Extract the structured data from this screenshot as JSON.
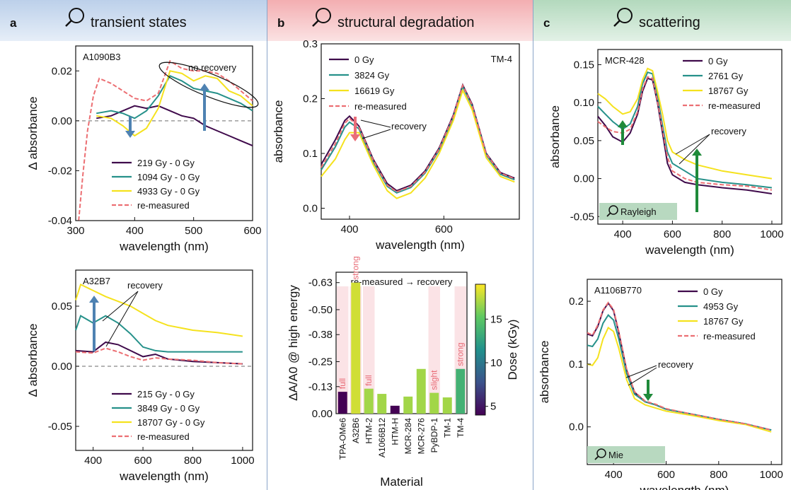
{
  "panels": [
    {
      "letter": "a",
      "title": "transient states",
      "color": "#c6d6ec"
    },
    {
      "letter": "b",
      "title": "structural degradation",
      "color": "#f6c1c3"
    },
    {
      "letter": "c",
      "title": "scattering",
      "color": "#c5e2cd"
    }
  ],
  "icons": {
    "title": "magnifier-icon"
  },
  "colors": {
    "c1": "#3f0a4b",
    "c2": "#26918a",
    "c3": "#f5e21e",
    "c4": "#ec6f73",
    "arrow_blue": "#4e82b2",
    "arrow_pink": "#ea6d78",
    "arrow_green": "#1f8a3a"
  },
  "chart_data": [
    {
      "id": "a_top",
      "type": "line",
      "annotation": "A1090B3",
      "note": "no recovery",
      "ylabel": "Δ absorbance",
      "xlabel": "wavelength (nm)",
      "xlim": [
        300,
        600
      ],
      "ylim": [
        -0.04,
        0.03
      ],
      "xticks": [
        "300",
        "400",
        "500",
        "600"
      ],
      "yticks": [
        "0.02",
        "0.00",
        "-0.02",
        "-0.04"
      ],
      "legend": "lower-middle",
      "series": [
        {
          "name": "219 Gy - 0 Gy",
          "x": [
            335,
            360,
            380,
            400,
            420,
            440,
            460,
            480,
            500,
            520,
            540,
            560,
            580,
            600
          ],
          "y": [
            0.001,
            0.002,
            0.004,
            0.006,
            0.005,
            0.006,
            0.004,
            0.002,
            0.001,
            -0.002,
            -0.004,
            -0.006,
            -0.008,
            -0.01
          ]
        },
        {
          "name": "1094 Gy - 0 Gy",
          "x": [
            335,
            360,
            380,
            400,
            420,
            440,
            460,
            480,
            500,
            520,
            540,
            560,
            580,
            600
          ],
          "y": [
            0.003,
            0.004,
            0.003,
            0.001,
            0.004,
            0.01,
            0.018,
            0.016,
            0.013,
            0.012,
            0.011,
            0.009,
            0.007,
            0.004
          ]
        },
        {
          "name": "4933 Gy - 0 Gy",
          "x": [
            335,
            360,
            380,
            400,
            420,
            440,
            460,
            480,
            500,
            520,
            540,
            560,
            580,
            600
          ],
          "y": [
            0.002,
            0.001,
            -0.002,
            -0.006,
            -0.003,
            0.005,
            0.02,
            0.019,
            0.016,
            0.018,
            0.017,
            0.012,
            0.01,
            0.006
          ]
        },
        {
          "name": "re-measured",
          "x": [
            305,
            312,
            320,
            330,
            340,
            360,
            380,
            400,
            420,
            440,
            460,
            480,
            500,
            520,
            540,
            560,
            580,
            600
          ],
          "y": [
            -0.04,
            -0.022,
            -0.004,
            0.01,
            0.017,
            0.015,
            0.012,
            0.009,
            0.008,
            0.011,
            0.024,
            0.021,
            0.02,
            0.02,
            0.019,
            0.016,
            0.012,
            0.008
          ]
        }
      ]
    },
    {
      "id": "a_bot",
      "type": "line",
      "annotation": "A32B7",
      "note": "recovery",
      "ylabel": "Δ absorbance",
      "xlabel": "wavelength (nm)",
      "xlim": [
        330,
        1040
      ],
      "ylim": [
        -0.07,
        0.08
      ],
      "xticks": [
        "400",
        "600",
        "800",
        "1000"
      ],
      "yticks": [
        "0.05",
        "0.00",
        "-0.05"
      ],
      "legend": "lower-middle",
      "series": [
        {
          "name": "215 Gy - 0 Gy",
          "x": [
            330,
            400,
            450,
            500,
            550,
            600,
            650,
            700,
            800,
            900,
            1000
          ],
          "y": [
            0.013,
            0.012,
            0.02,
            0.018,
            0.013,
            0.008,
            0.01,
            0.006,
            0.004,
            0.003,
            0.002
          ]
        },
        {
          "name": "3849 Gy - 0 Gy",
          "x": [
            330,
            350,
            400,
            450,
            500,
            550,
            600,
            650,
            700,
            800,
            900,
            1000
          ],
          "y": [
            0.03,
            0.042,
            0.036,
            0.042,
            0.036,
            0.027,
            0.016,
            0.013,
            0.012,
            0.012,
            0.012,
            0.012
          ]
        },
        {
          "name": "18707 Gy - 0 Gy",
          "x": [
            330,
            350,
            400,
            450,
            500,
            550,
            600,
            650,
            700,
            800,
            900,
            1000
          ],
          "y": [
            0.055,
            0.068,
            0.063,
            0.058,
            0.054,
            0.05,
            0.044,
            0.038,
            0.034,
            0.03,
            0.028,
            0.025
          ]
        },
        {
          "name": "re-measured",
          "x": [
            330,
            400,
            450,
            500,
            550,
            600,
            650,
            700,
            800,
            900,
            1000
          ],
          "y": [
            0.012,
            0.011,
            0.015,
            0.012,
            0.008,
            0.005,
            0.007,
            0.006,
            0.005,
            0.003,
            0.002
          ]
        }
      ]
    },
    {
      "id": "b_top",
      "type": "line",
      "annotation": "TM-4",
      "note": "recovery",
      "ylabel": "absorbance",
      "xlabel": "wavelength (nm)",
      "xlim": [
        340,
        760
      ],
      "ylim": [
        -0.02,
        0.3
      ],
      "xticks": [
        "400",
        "600"
      ],
      "yticks": [
        "0.3",
        "0.2",
        "0.1",
        "0.0"
      ],
      "legend": "upper-left",
      "series": [
        {
          "name": "0 Gy",
          "x": [
            340,
            370,
            390,
            400,
            420,
            450,
            480,
            500,
            530,
            560,
            590,
            620,
            640,
            660,
            690,
            720,
            750
          ],
          "y": [
            0.08,
            0.125,
            0.16,
            0.168,
            0.15,
            0.09,
            0.045,
            0.032,
            0.042,
            0.068,
            0.11,
            0.17,
            0.225,
            0.19,
            0.1,
            0.065,
            0.055
          ]
        },
        {
          "name": "3824 Gy",
          "x": [
            340,
            370,
            390,
            400,
            420,
            450,
            480,
            500,
            530,
            560,
            590,
            620,
            640,
            660,
            690,
            720,
            750
          ],
          "y": [
            0.07,
            0.112,
            0.148,
            0.157,
            0.145,
            0.085,
            0.04,
            0.028,
            0.038,
            0.064,
            0.106,
            0.165,
            0.222,
            0.186,
            0.097,
            0.062,
            0.052
          ]
        },
        {
          "name": "16619 Gy",
          "x": [
            340,
            370,
            390,
            400,
            420,
            450,
            480,
            500,
            530,
            560,
            590,
            620,
            640,
            660,
            690,
            720,
            750
          ],
          "y": [
            0.058,
            0.09,
            0.125,
            0.138,
            0.138,
            0.08,
            0.032,
            0.018,
            0.028,
            0.055,
            0.1,
            0.16,
            0.215,
            0.18,
            0.092,
            0.058,
            0.048
          ]
        },
        {
          "name": "re-measured",
          "x": [
            340,
            370,
            390,
            400,
            420,
            450,
            480,
            500,
            530,
            560,
            590,
            620,
            640,
            660,
            690,
            720,
            750
          ],
          "y": [
            0.074,
            0.118,
            0.155,
            0.164,
            0.148,
            0.088,
            0.042,
            0.03,
            0.04,
            0.066,
            0.108,
            0.168,
            0.224,
            0.188,
            0.099,
            0.064,
            0.054
          ]
        }
      ]
    },
    {
      "id": "b_bot",
      "type": "bar",
      "note": "re-measured → recovery",
      "ylabel": "ΔA/A0 @ high energy",
      "xlabel": "Material",
      "colorbar_label": "Dose (kGy)",
      "colorbar_ticks": [
        "15",
        "10",
        "5"
      ],
      "yticks": [
        "-0.63",
        "-0.50",
        "-0.38",
        "-0.25",
        "-0.13",
        "0.00"
      ],
      "categories": [
        "TPA-OMe6",
        "A32B6",
        "HTM-2",
        "A1066B12",
        "HTM-H",
        "MCR-284",
        "MCR-276",
        "PyBDP-1",
        "TM-1",
        "TM-4"
      ],
      "values": [
        0.105,
        0.63,
        0.12,
        0.095,
        0.038,
        0.082,
        0.215,
        0.1,
        0.078,
        0.215
      ],
      "doses": [
        5,
        18,
        17,
        17,
        5,
        17,
        17,
        17,
        17,
        14
      ],
      "labels": [
        "full",
        "strong",
        "full",
        "",
        "",
        "",
        "",
        "slight",
        "",
        "strong"
      ]
    },
    {
      "id": "c_top",
      "type": "line",
      "annotation": "MCR-428",
      "note": "recovery",
      "badge": "Rayleigh",
      "ylabel": "absorbance",
      "xlabel": "wavelength (nm)",
      "xlim": [
        300,
        1040
      ],
      "ylim": [
        -0.06,
        0.17
      ],
      "xticks": [
        "400",
        "600",
        "800",
        "1000"
      ],
      "yticks": [
        "0.15",
        "0.10",
        "0.05",
        "0.00",
        "-0.05"
      ],
      "legend": "upper-right",
      "series": [
        {
          "name": "0 Gy",
          "x": [
            300,
            330,
            360,
            400,
            430,
            460,
            480,
            500,
            520,
            540,
            560,
            580,
            600,
            650,
            700,
            800,
            900,
            1000
          ],
          "y": [
            0.082,
            0.07,
            0.055,
            0.048,
            0.06,
            0.085,
            0.115,
            0.132,
            0.13,
            0.1,
            0.06,
            0.02,
            0.005,
            -0.005,
            -0.008,
            -0.012,
            -0.015,
            -0.02
          ]
        },
        {
          "name": "2761 Gy",
          "x": [
            300,
            330,
            360,
            400,
            430,
            460,
            480,
            500,
            520,
            540,
            560,
            580,
            600,
            650,
            700,
            800,
            900,
            1000
          ],
          "y": [
            0.095,
            0.085,
            0.075,
            0.065,
            0.072,
            0.095,
            0.125,
            0.14,
            0.138,
            0.108,
            0.07,
            0.035,
            0.02,
            0.01,
            0.0,
            -0.005,
            -0.008,
            -0.012
          ]
        },
        {
          "name": "18767 Gy",
          "x": [
            300,
            330,
            360,
            400,
            430,
            460,
            480,
            500,
            520,
            540,
            560,
            580,
            600,
            650,
            700,
            800,
            900,
            1000
          ],
          "y": [
            0.112,
            0.105,
            0.095,
            0.085,
            0.088,
            0.105,
            0.13,
            0.145,
            0.142,
            0.115,
            0.085,
            0.05,
            0.035,
            0.025,
            0.018,
            0.01,
            0.005,
            0.0
          ]
        },
        {
          "name": "re-measured",
          "x": [
            300,
            330,
            360,
            400,
            430,
            460,
            480,
            500,
            520,
            540,
            560,
            580,
            600,
            650,
            700,
            800,
            900,
            1000
          ],
          "y": [
            0.075,
            0.068,
            0.062,
            0.06,
            0.065,
            0.088,
            0.118,
            0.134,
            0.132,
            0.102,
            0.065,
            0.028,
            0.01,
            0.0,
            -0.005,
            -0.008,
            -0.01,
            -0.015
          ]
        }
      ]
    },
    {
      "id": "c_bot",
      "type": "line",
      "annotation": "A1106B770",
      "note": "recovery",
      "badge": "Mie",
      "ylabel": "absorbance",
      "xlabel": "wavelength (nm)",
      "xlim": [
        300,
        1040
      ],
      "ylim": [
        -0.06,
        0.235
      ],
      "xticks": [
        "400",
        "600",
        "800",
        "1000"
      ],
      "yticks": [
        "0.2",
        "0.1",
        "0.0"
      ],
      "legend": "upper-right",
      "series": [
        {
          "name": "0 Gy",
          "x": [
            300,
            320,
            340,
            360,
            380,
            400,
            420,
            450,
            480,
            520,
            560,
            600,
            700,
            800,
            900,
            1000
          ],
          "y": [
            0.148,
            0.145,
            0.16,
            0.185,
            0.197,
            0.185,
            0.15,
            0.09,
            0.055,
            0.04,
            0.035,
            0.028,
            0.02,
            0.012,
            0.005,
            -0.005
          ]
        },
        {
          "name": "4953 Gy",
          "x": [
            300,
            320,
            340,
            360,
            380,
            400,
            420,
            450,
            480,
            520,
            560,
            600,
            700,
            800,
            900,
            1000
          ],
          "y": [
            0.13,
            0.128,
            0.14,
            0.165,
            0.178,
            0.17,
            0.14,
            0.085,
            0.052,
            0.04,
            0.035,
            0.028,
            0.02,
            0.012,
            0.005,
            -0.005
          ]
        },
        {
          "name": "18767 Gy",
          "x": [
            300,
            320,
            340,
            360,
            380,
            400,
            420,
            450,
            480,
            520,
            560,
            600,
            700,
            800,
            900,
            1000
          ],
          "y": [
            0.1,
            0.098,
            0.11,
            0.14,
            0.158,
            0.152,
            0.125,
            0.075,
            0.045,
            0.035,
            0.03,
            0.025,
            0.018,
            0.01,
            0.004,
            -0.008
          ]
        },
        {
          "name": "re-measured",
          "x": [
            300,
            320,
            340,
            360,
            380,
            400,
            420,
            450,
            480,
            520,
            560,
            600,
            700,
            800,
            900,
            1000
          ],
          "y": [
            0.15,
            0.146,
            0.162,
            0.186,
            0.198,
            0.187,
            0.152,
            0.092,
            0.056,
            0.041,
            0.036,
            0.029,
            0.02,
            0.012,
            0.005,
            -0.005
          ]
        }
      ]
    }
  ]
}
